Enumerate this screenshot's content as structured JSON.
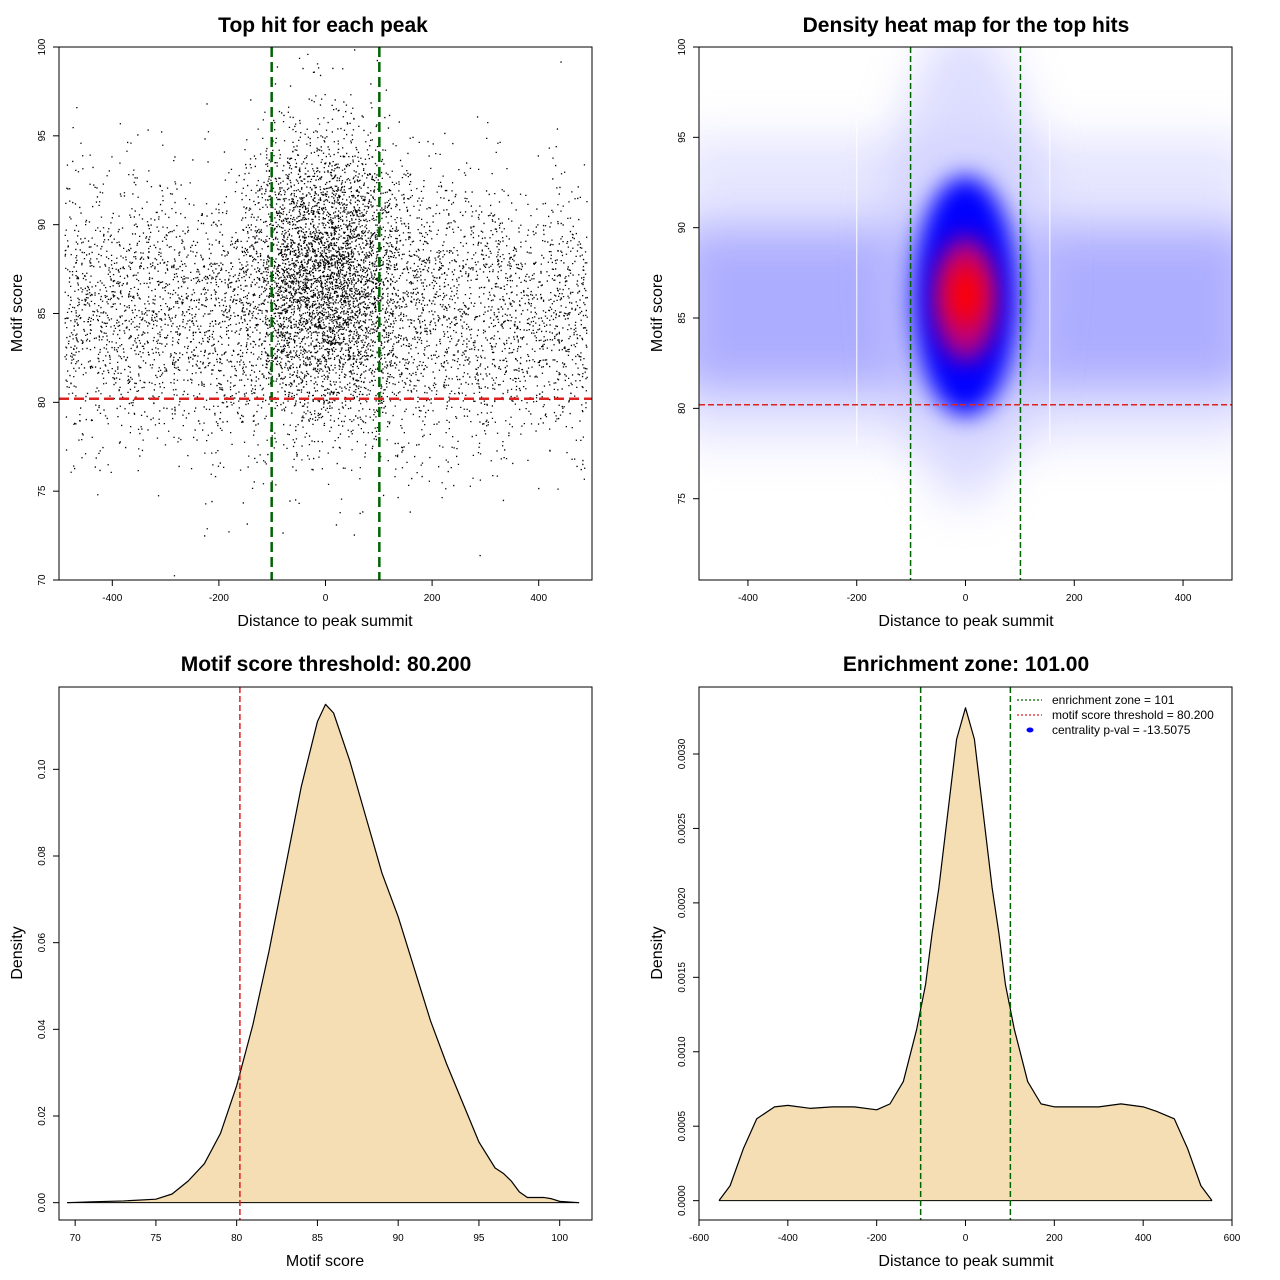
{
  "chart_data": [
    {
      "type": "scatter",
      "title": "Top hit for each peak",
      "xlabel": "Distance to peak summit",
      "ylabel": "Motif score",
      "xlim": [
        -500,
        500
      ],
      "ylim": [
        70,
        100
      ],
      "xticks": [
        -400,
        -200,
        0,
        200,
        400
      ],
      "yticks": [
        70,
        75,
        80,
        85,
        90,
        95,
        100
      ],
      "hlines": [
        {
          "y": 80.2,
          "color": "#dd2222",
          "style": "dashed"
        }
      ],
      "vlines": [
        {
          "x": -101,
          "color": "#006400",
          "style": "dashed"
        },
        {
          "x": 101,
          "color": "#006400",
          "style": "dashed"
        }
      ],
      "points": {
        "background": {
          "x_range": [
            -490,
            490
          ],
          "y_center": 85,
          "y_sd": 3.8,
          "approx_count": 5200
        },
        "center": {
          "x_center": 0,
          "x_sd": 75,
          "y_center": 87.5,
          "y_sd": 3.8,
          "approx_count": 3600
        }
      },
      "grid": false
    },
    {
      "type": "heatmap",
      "title": "Density heat map for the top hits",
      "xlabel": "Distance to peak summit",
      "ylabel": "Motif score",
      "xlim": [
        -490,
        490
      ],
      "ylim": [
        70.5,
        100
      ],
      "xticks": [
        -400,
        -200,
        0,
        200,
        400
      ],
      "yticks": [
        75,
        80,
        85,
        90,
        95,
        100
      ],
      "hlines": [
        {
          "y": 80.2,
          "color": "#dd2222",
          "style": "dashed"
        }
      ],
      "vlines": [
        {
          "x": -101,
          "color": "#006400",
          "style": "dashed"
        },
        {
          "x": 101,
          "color": "#006400",
          "style": "dashed"
        }
      ],
      "colors": {
        "low": "#ffffff",
        "mid": "#0000ff",
        "high": "#ff0000"
      },
      "peak": {
        "x": 0,
        "y": 86.5
      },
      "grid": false
    },
    {
      "type": "area",
      "title": "Motif score threshold: 80.200",
      "xlabel": "Motif score",
      "ylabel": "Density",
      "xlim": [
        69,
        102
      ],
      "ylim": [
        -0.004,
        0.119
      ],
      "xticks": [
        70,
        75,
        80,
        85,
        90,
        95,
        100
      ],
      "yticks": [
        0.0,
        0.02,
        0.04,
        0.06,
        0.08,
        0.1
      ],
      "ytick_labels": [
        "0.00",
        "0.02",
        "0.04",
        "0.06",
        "0.08",
        "0.10"
      ],
      "x": [
        69.5,
        71,
        73,
        75,
        76,
        77,
        78,
        79,
        80,
        81,
        82,
        83,
        84,
        85,
        85.5,
        86,
        87,
        88,
        89,
        90,
        91,
        92,
        93,
        94,
        95,
        96,
        96.5,
        97,
        97.5,
        98,
        99,
        99.5,
        100,
        101.2
      ],
      "y": [
        0.0,
        0.0002,
        0.0004,
        0.0008,
        0.002,
        0.005,
        0.009,
        0.016,
        0.027,
        0.041,
        0.058,
        0.077,
        0.096,
        0.111,
        0.115,
        0.113,
        0.102,
        0.089,
        0.076,
        0.066,
        0.054,
        0.042,
        0.032,
        0.023,
        0.014,
        0.008,
        0.0068,
        0.005,
        0.0025,
        0.0012,
        0.0012,
        0.0009,
        0.0003,
        0.0
      ],
      "vlines": [
        {
          "x": 80.2,
          "color": "#dd2222",
          "style": "dashed"
        }
      ],
      "fill": "#f5deb3",
      "grid": false
    },
    {
      "type": "area",
      "title": "Enrichment zone: 101.00",
      "xlabel": "Distance to peak summit",
      "ylabel": "Density",
      "xlim": [
        -600,
        600
      ],
      "ylim": [
        -0.00013,
        0.00345
      ],
      "xticks": [
        -600,
        -400,
        -200,
        0,
        200,
        400,
        600
      ],
      "yticks": [
        0.0,
        0.0005,
        0.001,
        0.0015,
        0.002,
        0.0025,
        0.003
      ],
      "ytick_labels": [
        "0.0000",
        "0.0005",
        "0.0010",
        "0.0015",
        "0.0020",
        "0.0025",
        "0.0030"
      ],
      "x": [
        -555,
        -530,
        -500,
        -470,
        -430,
        -400,
        -350,
        -300,
        -250,
        -200,
        -170,
        -140,
        -110,
        -90,
        -75,
        -60,
        -40,
        -20,
        0,
        20,
        40,
        60,
        75,
        90,
        110,
        140,
        170,
        200,
        250,
        300,
        350,
        400,
        430,
        470,
        500,
        530,
        555
      ],
      "y": [
        0.0,
        0.0001,
        0.00035,
        0.00055,
        0.00063,
        0.00064,
        0.00062,
        0.00063,
        0.00063,
        0.00061,
        0.00065,
        0.0008,
        0.00115,
        0.00145,
        0.0018,
        0.0021,
        0.0026,
        0.0031,
        0.00331,
        0.0031,
        0.0026,
        0.0021,
        0.0018,
        0.00145,
        0.00115,
        0.0008,
        0.00065,
        0.00063,
        0.00063,
        0.00063,
        0.00065,
        0.00063,
        0.0006,
        0.00055,
        0.00035,
        0.0001,
        0.0
      ],
      "vlines": [
        {
          "x": -101,
          "color": "#006400",
          "style": "dashed"
        },
        {
          "x": 101,
          "color": "#006400",
          "style": "dashed"
        }
      ],
      "fill": "#f5deb3",
      "legend": {
        "position": "top-right",
        "entries": [
          {
            "label": "enrichment zone = 101",
            "color": "#006400",
            "kind": "dotted-line"
          },
          {
            "label": "motif score threshold = 80.200",
            "color": "#dd2222",
            "kind": "dotted-line"
          },
          {
            "label": "centrality p-val = -13.5075",
            "color": "#0000ff",
            "kind": "point"
          }
        ]
      },
      "grid": false
    }
  ]
}
